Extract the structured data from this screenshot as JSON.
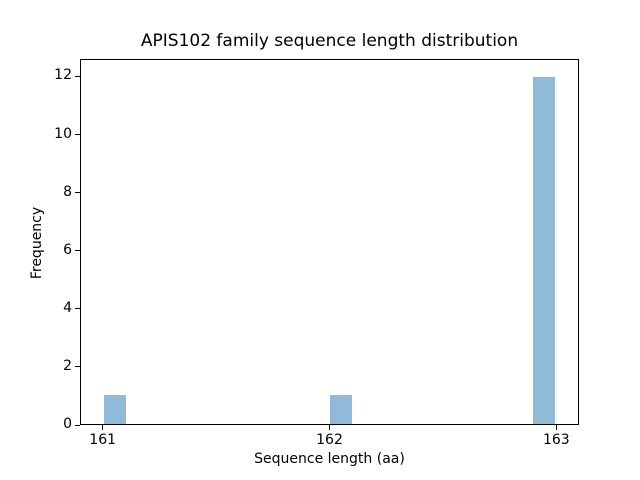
{
  "chart_data": {
    "type": "bar",
    "title": "APIS102 family sequence length distribution",
    "xlabel": "Sequence length (aa)",
    "ylabel": "Frequency",
    "x_ticks": [
      161,
      162,
      163
    ],
    "y_ticks": [
      0,
      2,
      4,
      6,
      8,
      10,
      12
    ],
    "xlim": [
      160.9,
      163.1
    ],
    "ylim": [
      0,
      12.6
    ],
    "grid": false,
    "legend": null,
    "bar_color": "#8fbbd9",
    "bin_width": 0.1,
    "bars": [
      {
        "x_start": 161.0,
        "x_end": 161.1,
        "height": 1
      },
      {
        "x_start": 162.0,
        "x_end": 162.1,
        "height": 1
      },
      {
        "x_start": 162.9,
        "x_end": 163.0,
        "height": 12
      }
    ]
  }
}
